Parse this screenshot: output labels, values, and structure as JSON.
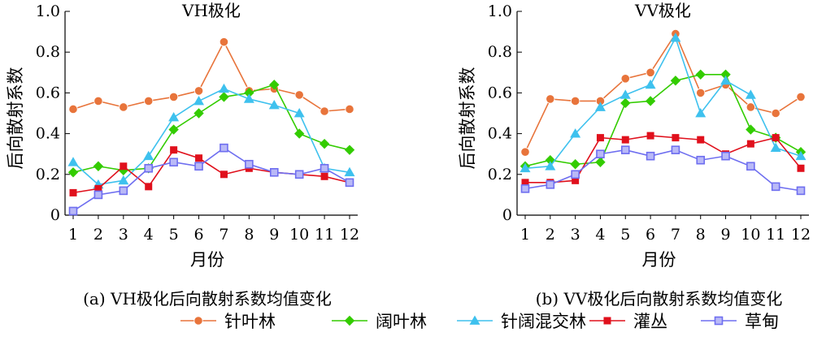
{
  "series_style": [
    {
      "color": "#E8743B",
      "marker": "circle"
    },
    {
      "color": "#33CC00",
      "marker": "diamond"
    },
    {
      "color": "#3EC1EE",
      "marker": "triangle"
    },
    {
      "color": "#E0101C",
      "marker": "square"
    },
    {
      "color": "#6E6EF0",
      "marker": "square-hollow"
    }
  ],
  "chart_data": [
    {
      "type": "line",
      "title": "VH极化",
      "caption": "(a) VH极化后向散射系数均值变化",
      "xlabel": "月份",
      "ylabel": "后向散射系数",
      "x": [
        1,
        2,
        3,
        4,
        5,
        6,
        7,
        8,
        9,
        10,
        11,
        12
      ],
      "x_ticks": [
        "1",
        "2",
        "3",
        "4",
        "5",
        "6",
        "7",
        "8",
        "9",
        "10",
        "11",
        "12"
      ],
      "y_ticks": [
        "0",
        "0.2",
        "0.4",
        "0.6",
        "0.8",
        "1.0"
      ],
      "ylim": [
        0,
        1.0
      ],
      "grid": false,
      "series": [
        {
          "name": "针叶林",
          "values": [
            0.52,
            0.56,
            0.53,
            0.56,
            0.58,
            0.61,
            0.85,
            0.61,
            0.62,
            0.59,
            0.51,
            0.52
          ]
        },
        {
          "name": "阔叶林",
          "values": [
            0.21,
            0.24,
            0.22,
            0.23,
            0.42,
            0.5,
            0.58,
            0.6,
            0.64,
            0.4,
            0.35,
            0.32
          ]
        },
        {
          "name": "针阔混交林",
          "values": [
            0.26,
            0.15,
            0.17,
            0.29,
            0.48,
            0.56,
            0.62,
            0.57,
            0.54,
            0.5,
            0.23,
            0.21
          ]
        },
        {
          "name": "灌丛",
          "values": [
            0.11,
            0.13,
            0.24,
            0.14,
            0.32,
            0.28,
            0.2,
            0.23,
            0.21,
            0.2,
            0.19,
            0.16
          ]
        },
        {
          "name": "草甸",
          "values": [
            0.02,
            0.1,
            0.12,
            0.23,
            0.26,
            0.24,
            0.33,
            0.25,
            0.21,
            0.2,
            0.23,
            0.16
          ]
        }
      ]
    },
    {
      "type": "line",
      "title": "VV极化",
      "caption": "(b) VV极化后向散射系数均值变化",
      "xlabel": "月份",
      "ylabel": "后向散射系数",
      "x": [
        1,
        2,
        3,
        4,
        5,
        6,
        7,
        8,
        9,
        10,
        11,
        12
      ],
      "x_ticks": [
        "1",
        "2",
        "3",
        "4",
        "5",
        "6",
        "7",
        "8",
        "9",
        "10",
        "11",
        "12"
      ],
      "y_ticks": [
        "0",
        "0.2",
        "0.4",
        "0.6",
        "0.8",
        "1.0"
      ],
      "ylim": [
        0,
        1.0
      ],
      "grid": false,
      "series": [
        {
          "name": "针叶林",
          "values": [
            0.31,
            0.57,
            0.56,
            0.56,
            0.67,
            0.7,
            0.89,
            0.6,
            0.64,
            0.53,
            0.5,
            0.58
          ]
        },
        {
          "name": "阔叶林",
          "values": [
            0.24,
            0.27,
            0.25,
            0.26,
            0.55,
            0.56,
            0.66,
            0.69,
            0.69,
            0.42,
            0.38,
            0.31
          ]
        },
        {
          "name": "针阔混交林",
          "values": [
            0.23,
            0.24,
            0.4,
            0.53,
            0.59,
            0.64,
            0.87,
            0.5,
            0.66,
            0.59,
            0.33,
            0.29
          ]
        },
        {
          "name": "灌丛",
          "values": [
            0.16,
            0.16,
            0.17,
            0.38,
            0.37,
            0.39,
            0.38,
            0.37,
            0.3,
            0.35,
            0.38,
            0.23
          ]
        },
        {
          "name": "草甸",
          "values": [
            0.13,
            0.15,
            0.2,
            0.3,
            0.32,
            0.29,
            0.32,
            0.27,
            0.29,
            0.24,
            0.14,
            0.12
          ]
        }
      ]
    }
  ],
  "legend": {
    "position": "bottom",
    "items": [
      "针叶林",
      "阔叶林",
      "针阔混交林",
      "灌丛",
      "草甸"
    ]
  }
}
